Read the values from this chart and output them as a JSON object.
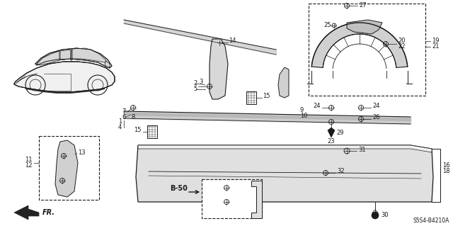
{
  "bg_color": "#ffffff",
  "diagram_code": "S5S4-B4210A",
  "text_color": "#1a1a1a",
  "line_color": "#1a1a1a",
  "fig_w": 6.4,
  "fig_h": 3.19,
  "dpi": 100
}
